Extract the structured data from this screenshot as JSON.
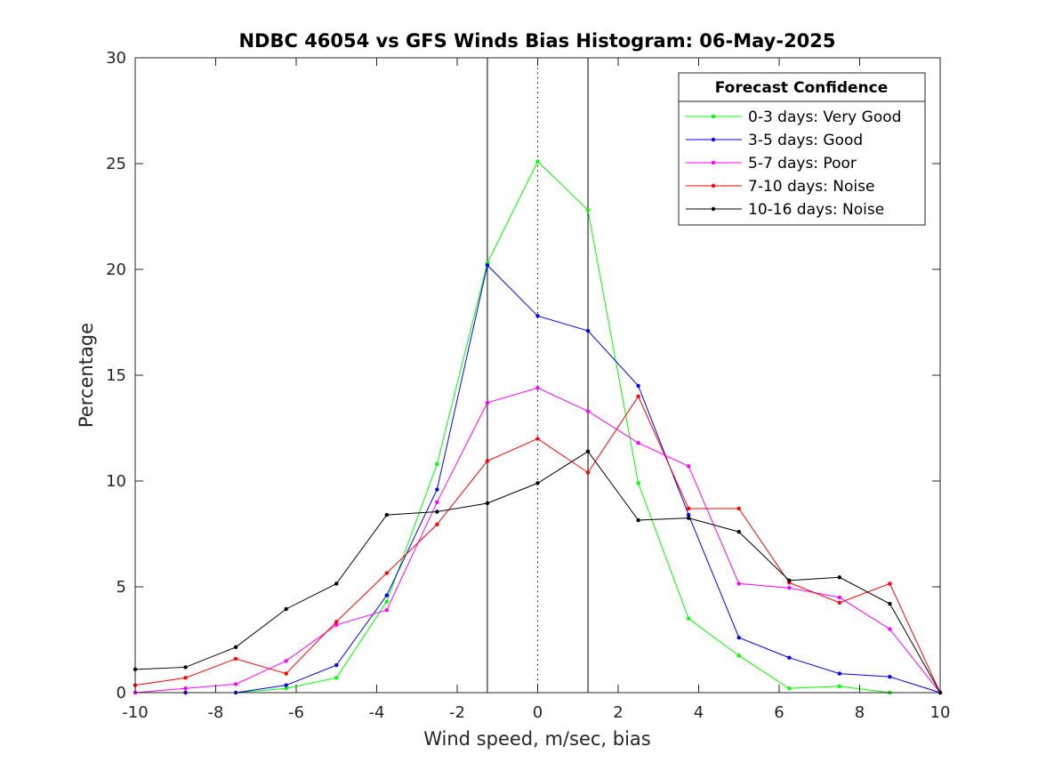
{
  "chart_data": {
    "type": "line",
    "title": "NDBC 46054 vs GFS Winds Bias Histogram: 06-May-2025",
    "xlabel": "Wind speed, m/sec, bias",
    "ylabel": "Percentage",
    "xlim": [
      -10,
      10
    ],
    "ylim": [
      0,
      30
    ],
    "xticks": [
      -10,
      -8,
      -6,
      -4,
      -2,
      0,
      2,
      4,
      6,
      8,
      10
    ],
    "yticks": [
      0,
      5,
      10,
      15,
      20,
      25,
      30
    ],
    "grid": false,
    "legend_title": "Forecast Confidence",
    "legend_position": "top-right",
    "vertical_lines": [
      {
        "x": -1.25,
        "style": "solid"
      },
      {
        "x": 0,
        "style": "dotted"
      },
      {
        "x": 1.25,
        "style": "solid"
      }
    ],
    "x": [
      -10,
      -8.75,
      -7.5,
      -6.25,
      -5,
      -3.75,
      -2.5,
      -1.25,
      0,
      1.25,
      2.5,
      3.75,
      5,
      6.25,
      7.5,
      8.75,
      10
    ],
    "series": [
      {
        "name": "0-3 days: Very Good",
        "color": "#00ff00",
        "values": [
          0,
          0,
          0,
          0.2,
          0.7,
          4.3,
          10.8,
          20.3,
          25.1,
          22.8,
          9.9,
          3.5,
          1.75,
          0.2,
          0.3,
          0,
          0
        ]
      },
      {
        "name": "3-5 days: Good",
        "color": "#0000ff",
        "values": [
          0,
          0,
          0,
          0.35,
          1.3,
          4.6,
          9.6,
          20.2,
          17.8,
          17.1,
          14.5,
          8.4,
          2.6,
          1.65,
          0.9,
          0.75,
          0
        ]
      },
      {
        "name": "5-7 days: Poor",
        "color": "#ff00ff",
        "values": [
          0,
          0.2,
          0.4,
          1.5,
          3.2,
          3.9,
          9.0,
          13.7,
          14.4,
          13.3,
          11.8,
          10.7,
          5.15,
          4.95,
          4.5,
          3.0,
          0
        ]
      },
      {
        "name": "7-10 days: Noise",
        "color": "#ff0000",
        "values": [
          0.35,
          0.7,
          1.6,
          0.9,
          3.35,
          5.65,
          7.95,
          10.95,
          12.0,
          10.4,
          14.0,
          8.7,
          8.7,
          5.2,
          4.25,
          5.15,
          0
        ]
      },
      {
        "name": "10-16 days: Noise",
        "color": "#000000",
        "values": [
          1.1,
          1.2,
          2.15,
          3.95,
          5.15,
          8.4,
          8.55,
          8.95,
          9.9,
          11.4,
          8.15,
          8.25,
          7.6,
          5.3,
          5.45,
          4.2,
          0
        ]
      }
    ]
  }
}
